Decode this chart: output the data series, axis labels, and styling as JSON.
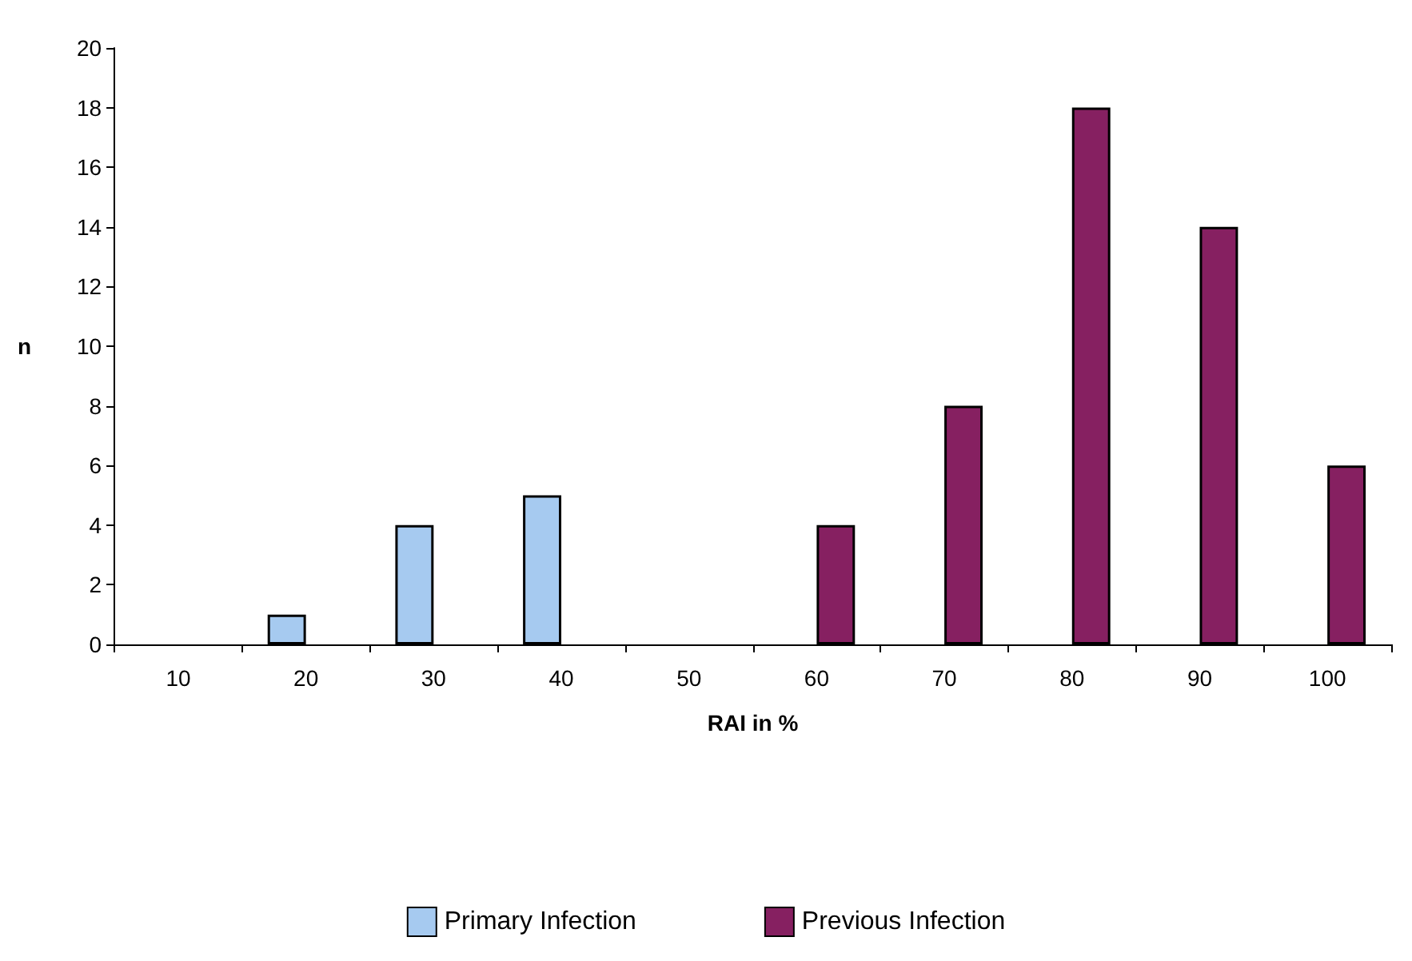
{
  "chart_data": {
    "type": "bar",
    "xlabel": "RAI in %",
    "ylabel": "n",
    "categories": [
      "10",
      "20",
      "30",
      "40",
      "50",
      "60",
      "70",
      "80",
      "90",
      "100"
    ],
    "series": [
      {
        "name": "Primary Infection",
        "color": "#a6caf0",
        "values": [
          0,
          1,
          4,
          5,
          0,
          0,
          0,
          0,
          0,
          0
        ]
      },
      {
        "name": "Previous Infection",
        "color": "#862061",
        "values": [
          0,
          0,
          0,
          0,
          0,
          4,
          8,
          18,
          14,
          6
        ]
      }
    ],
    "ylim": [
      0,
      20
    ],
    "yticks": [
      0,
      2,
      4,
      6,
      8,
      10,
      12,
      14,
      16,
      18,
      20
    ],
    "grid": false,
    "legend": "bottom"
  }
}
